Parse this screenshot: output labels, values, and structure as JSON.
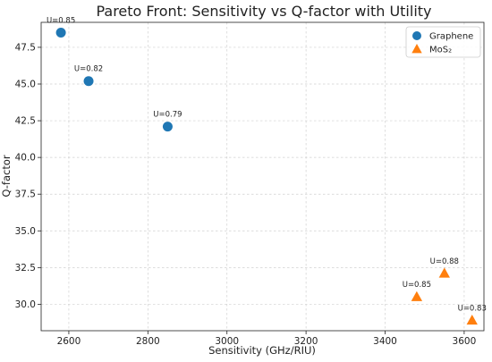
{
  "chart_data": {
    "type": "scatter",
    "title": "Pareto Front: Sensitivity vs Q-factor with Utility",
    "xlabel": "Sensitivity (GHz/RIU)",
    "ylabel": "Q-factor",
    "xlim": [
      2530,
      3650
    ],
    "ylim": [
      28.2,
      49.2
    ],
    "xticks": [
      2600,
      2800,
      3000,
      3200,
      3400,
      3600
    ],
    "yticks": [
      30.0,
      32.5,
      35.0,
      37.5,
      40.0,
      42.5,
      45.0,
      47.5
    ],
    "grid": true,
    "legend_position": "top-right",
    "series": [
      {
        "name": "Graphene",
        "marker": "circle",
        "color": "#1f77b4",
        "points": [
          {
            "x": 2580,
            "y": 48.5,
            "label": "U=0.85"
          },
          {
            "x": 2650,
            "y": 45.2,
            "label": "U=0.82"
          },
          {
            "x": 2850,
            "y": 42.1,
            "label": "U=0.79"
          }
        ]
      },
      {
        "name": "MoS₂",
        "marker": "triangle",
        "color": "#ff7f0e",
        "points": [
          {
            "x": 3550,
            "y": 32.1,
            "label": "U=0.88"
          },
          {
            "x": 3480,
            "y": 30.5,
            "label": "U=0.85"
          },
          {
            "x": 3620,
            "y": 28.9,
            "label": "U=0.83"
          }
        ]
      }
    ]
  }
}
